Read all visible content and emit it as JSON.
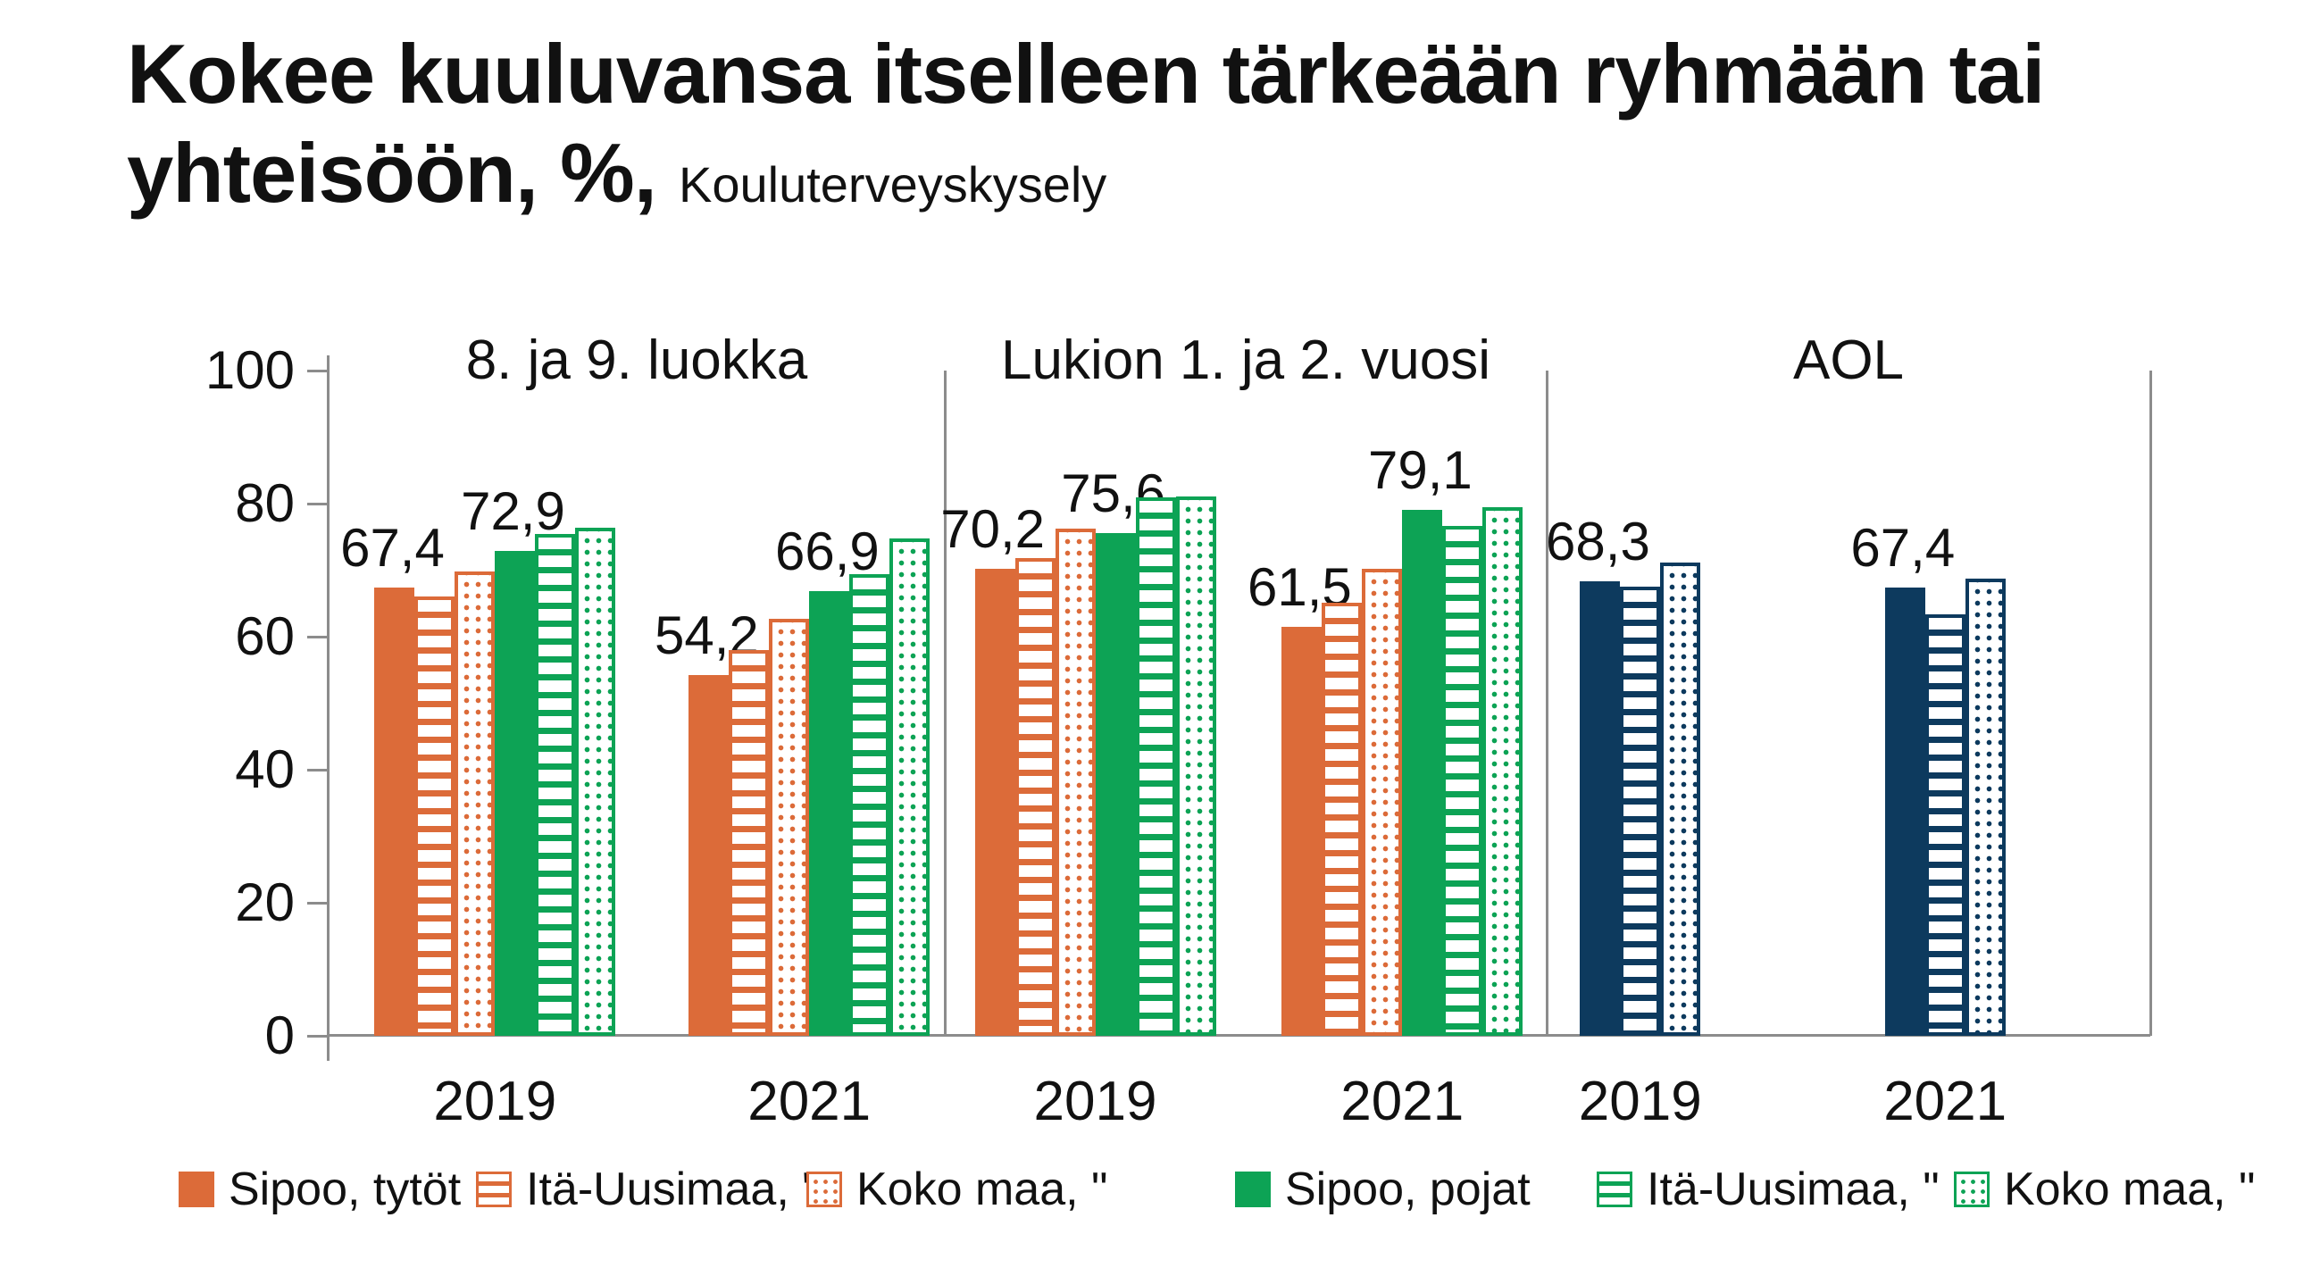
{
  "title": {
    "main": "Kokee kuuluvansa itselleen tärkeään ryhmään tai yhteisöön, %,",
    "suffix": "Kouluterveyskysely"
  },
  "colors": {
    "orange": "#DC6B39",
    "green": "#0DA355",
    "navy": "#0D3A5E",
    "axis_gray": "#8C8C8C",
    "text": "#111111"
  },
  "y_axis": {
    "ticks": [
      {
        "label": "100",
        "value": 100
      },
      {
        "label": "80",
        "value": 80
      },
      {
        "label": "60",
        "value": 60
      },
      {
        "label": "40",
        "value": 40
      },
      {
        "label": "20",
        "value": 20
      },
      {
        "label": "0",
        "value": 0
      }
    ]
  },
  "legend": [
    {
      "label": "Sipoo, tytöt",
      "color": "#DC6B39",
      "pattern": "solid"
    },
    {
      "label": "Itä-Uusimaa, \"",
      "color": "#DC6B39",
      "pattern": "hstripe"
    },
    {
      "label": "Koko maa, \"",
      "color": "#DC6B39",
      "pattern": "dots"
    },
    {
      "label": "Sipoo, pojat",
      "color": "#0DA355",
      "pattern": "solid"
    },
    {
      "label": "Itä-Uusimaa, \"",
      "color": "#0DA355",
      "pattern": "hstripe"
    },
    {
      "label": "Koko maa, \"",
      "color": "#0DA355",
      "pattern": "dots"
    }
  ],
  "chart_data": {
    "type": "bar",
    "title": "Kokee kuuluvansa itselleen tärkeään ryhmään tai yhteisöön, %, Kouluterveyskysely",
    "ylim": [
      0,
      100
    ],
    "y_tick_step": 20,
    "grid": false,
    "legend_position": "bottom",
    "panels": [
      {
        "label": "8. ja 9. luokka",
        "series": [
          {
            "name": "Sipoo, tytöt",
            "color": "#DC6B39",
            "pattern": "solid"
          },
          {
            "name": "Itä-Uusimaa, \"",
            "color": "#DC6B39",
            "pattern": "hstripe"
          },
          {
            "name": "Koko maa, \"",
            "color": "#DC6B39",
            "pattern": "dots"
          },
          {
            "name": "Sipoo, pojat",
            "color": "#0DA355",
            "pattern": "solid"
          },
          {
            "name": "Itä-Uusimaa, \"",
            "color": "#0DA355",
            "pattern": "hstripe"
          },
          {
            "name": "Koko maa, \"",
            "color": "#0DA355",
            "pattern": "dots"
          }
        ],
        "groups": [
          {
            "category": "2019",
            "values": [
              67.4,
              66.1,
              69.8,
              72.9,
              75.4,
              76.4
            ],
            "labels": [
              "67,4",
              null,
              null,
              "72,9",
              null,
              null
            ]
          },
          {
            "category": "2021",
            "values": [
              54.2,
              58.0,
              62.7,
              66.9,
              69.4,
              74.8
            ],
            "labels": [
              "54,2",
              null,
              null,
              "66,9",
              null,
              null
            ]
          }
        ]
      },
      {
        "label": "Lukion 1. ja 2. vuosi",
        "series": [
          {
            "name": "Sipoo, tytöt",
            "color": "#DC6B39",
            "pattern": "solid"
          },
          {
            "name": "Itä-Uusimaa, \"",
            "color": "#DC6B39",
            "pattern": "hstripe"
          },
          {
            "name": "Koko maa, \"",
            "color": "#DC6B39",
            "pattern": "dots"
          },
          {
            "name": "Sipoo, pojat",
            "color": "#0DA355",
            "pattern": "solid"
          },
          {
            "name": "Itä-Uusimaa, \"",
            "color": "#0DA355",
            "pattern": "hstripe"
          },
          {
            "name": "Koko maa, \"",
            "color": "#0DA355",
            "pattern": "dots"
          }
        ],
        "groups": [
          {
            "category": "2019",
            "values": [
              70.2,
              71.8,
              76.2,
              75.6,
              81.0,
              81.1
            ],
            "labels": [
              "70,2",
              null,
              null,
              "75,6",
              null,
              null
            ]
          },
          {
            "category": "2021",
            "values": [
              61.5,
              65.1,
              70.2,
              79.1,
              76.7,
              79.5
            ],
            "labels": [
              "61,5",
              null,
              null,
              "79,1",
              null,
              null
            ]
          }
        ]
      },
      {
        "label": "AOL",
        "series": [
          {
            "name": "Sipoo",
            "color": "#0D3A5E",
            "pattern": "solid"
          },
          {
            "name": "Itä-Uusimaa",
            "color": "#0D3A5E",
            "pattern": "hstripe"
          },
          {
            "name": "Koko maa",
            "color": "#0D3A5E",
            "pattern": "dots"
          }
        ],
        "groups": [
          {
            "category": "2019",
            "values": [
              68.3,
              67.5,
              71.1
            ],
            "labels": [
              "68,3",
              null,
              null
            ]
          },
          {
            "category": "2021",
            "values": [
              67.4,
              63.3,
              68.7
            ],
            "labels": [
              "67,4",
              null,
              null
            ]
          }
        ]
      }
    ]
  }
}
